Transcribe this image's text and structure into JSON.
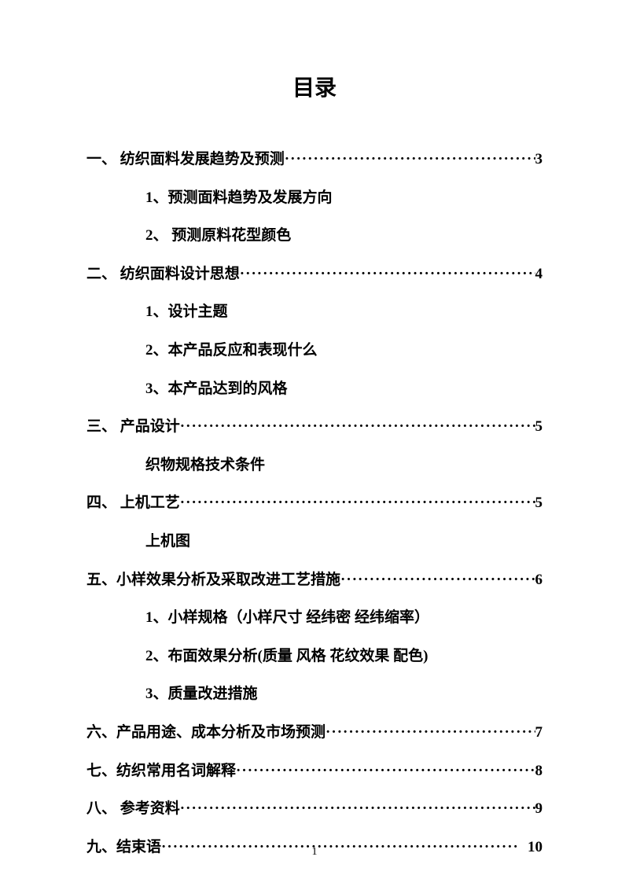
{
  "title": "目录",
  "entries": [
    {
      "type": "main",
      "label": "一、 纺织面料发展趋势及预测",
      "page": "3"
    },
    {
      "type": "sub",
      "text": "1、预测面料趋势及发展方向"
    },
    {
      "type": "sub",
      "text": "2、 预测原料花型颜色"
    },
    {
      "type": "main",
      "label": "二、 纺织面料设计思想",
      "page": "4"
    },
    {
      "type": "sub",
      "text": "1、设计主题"
    },
    {
      "type": "sub",
      "text": "2、本产品反应和表现什么"
    },
    {
      "type": "sub",
      "text": "3、本产品达到的风格"
    },
    {
      "type": "main",
      "label": "三、 产品设计",
      "page": "5"
    },
    {
      "type": "sub",
      "text": "织物规格技术条件"
    },
    {
      "type": "main",
      "label": "四、 上机工艺",
      "page": "5"
    },
    {
      "type": "sub",
      "text": "上机图"
    },
    {
      "type": "main",
      "label": "五、小样效果分析及采取改进工艺措施",
      "page": "6"
    },
    {
      "type": "sub",
      "text": "1、小样规格（小样尺寸  经纬密  经纬缩率）"
    },
    {
      "type": "sub",
      "text": "2、布面效果分析(质量  风格  花纹效果  配色)"
    },
    {
      "type": "sub",
      "text": "3、质量改进措施"
    },
    {
      "type": "main",
      "label": "六、产品用途、成本分析及市场预测",
      "page": "7"
    },
    {
      "type": "main",
      "label": "七、纺织常用名词解释",
      "page": "8"
    },
    {
      "type": "main",
      "label": "八、 参考资料",
      "page": "9"
    },
    {
      "type": "main",
      "label": "九、结束语",
      "page": "10"
    }
  ],
  "pageNumber": "1",
  "dots": "······························································"
}
